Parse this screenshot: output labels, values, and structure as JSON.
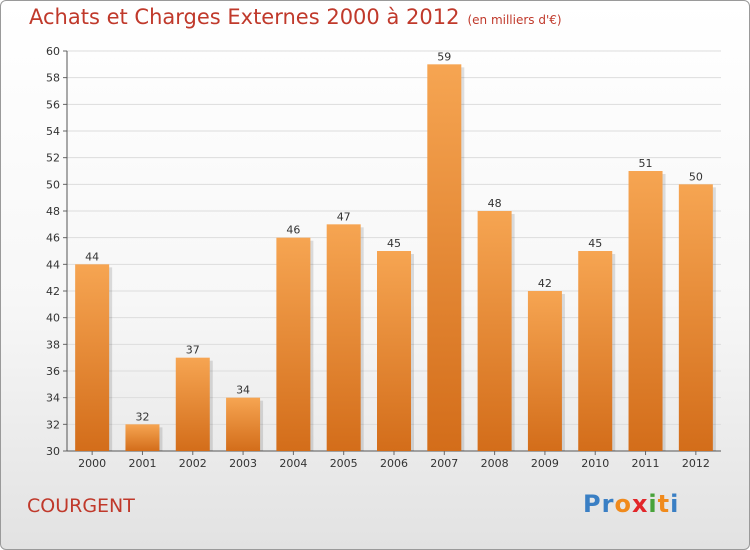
{
  "header": {
    "title": "Achats et Charges Externes 2000 à 2012",
    "unit": "(en milliers d'€)"
  },
  "footer": {
    "commune": "COURGENT",
    "logo_letters": [
      "P",
      "r",
      "o",
      "x",
      "i",
      "t",
      "i"
    ],
    "logo_colors": [
      "#3a7fc4",
      "#3a7fc4",
      "#f08a1c",
      "#e2262a",
      "#49a33b",
      "#f08a1c",
      "#3a7fc4"
    ]
  },
  "colors": {
    "bar_light": "#f6a552",
    "bar_dark": "#d36d1a",
    "title": "#c0392b",
    "grid": "#dddddd"
  },
  "chart_data": {
    "type": "bar",
    "categories": [
      "2000",
      "2001",
      "2002",
      "2003",
      "2004",
      "2005",
      "2006",
      "2007",
      "2008",
      "2009",
      "2010",
      "2011",
      "2012"
    ],
    "values": [
      44,
      32,
      37,
      34,
      46,
      47,
      45,
      59,
      48,
      42,
      45,
      51,
      50
    ],
    "ylim": [
      30,
      60
    ],
    "yticks": [
      30,
      32,
      34,
      36,
      38,
      40,
      42,
      44,
      46,
      48,
      50,
      52,
      54,
      56,
      58,
      60
    ],
    "grid": true,
    "title": "Achats et Charges Externes 2000 à 2012",
    "xlabel": "",
    "ylabel": ""
  }
}
